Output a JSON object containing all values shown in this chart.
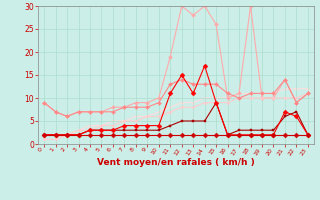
{
  "x": [
    0,
    1,
    2,
    3,
    4,
    5,
    6,
    7,
    8,
    9,
    10,
    11,
    12,
    13,
    14,
    15,
    16,
    17,
    18,
    19,
    20,
    21,
    22,
    23
  ],
  "series": [
    {
      "label": "line_dark_red_flat",
      "color": "#cc0000",
      "linewidth": 0.8,
      "markersize": 2.5,
      "marker": "D",
      "zorder": 6,
      "values": [
        2,
        2,
        2,
        2,
        2,
        2,
        2,
        2,
        2,
        2,
        2,
        2,
        2,
        2,
        2,
        2,
        2,
        2,
        2,
        2,
        2,
        2,
        2,
        2
      ]
    },
    {
      "label": "line_red_spiky",
      "color": "#ff0000",
      "linewidth": 0.8,
      "markersize": 2.5,
      "marker": "D",
      "zorder": 5,
      "values": [
        2,
        2,
        2,
        2,
        3,
        3,
        3,
        4,
        4,
        4,
        4,
        11,
        15,
        11,
        17,
        9,
        2,
        2,
        2,
        2,
        2,
        7,
        6,
        2
      ]
    },
    {
      "label": "line_dark_red2",
      "color": "#aa0000",
      "linewidth": 0.8,
      "markersize": 2.0,
      "marker": "s",
      "zorder": 4,
      "values": [
        2,
        2,
        2,
        2,
        3,
        3,
        3,
        3,
        3,
        3,
        3,
        4,
        5,
        5,
        5,
        9,
        2,
        3,
        3,
        3,
        3,
        6,
        7,
        2
      ]
    },
    {
      "label": "line_medium_pink",
      "color": "#ff8888",
      "linewidth": 0.8,
      "markersize": 2.0,
      "marker": "D",
      "zorder": 3,
      "values": [
        9,
        7,
        6,
        7,
        7,
        7,
        7,
        8,
        8,
        8,
        9,
        13,
        14,
        13,
        13,
        13,
        11,
        10,
        11,
        11,
        11,
        14,
        9,
        11
      ]
    },
    {
      "label": "line_light_pink_spiky",
      "color": "#ffaaaa",
      "linewidth": 0.8,
      "markersize": 2.0,
      "marker": "D",
      "zorder": 2,
      "values": [
        9,
        7,
        6,
        7,
        7,
        7,
        8,
        8,
        9,
        9,
        10,
        19,
        30,
        28,
        30,
        26,
        10,
        11,
        30,
        10,
        10,
        14,
        9,
        11
      ]
    },
    {
      "label": "line_very_light_pink1",
      "color": "#ffcccc",
      "linewidth": 0.8,
      "markersize": 1.5,
      "marker": "D",
      "zorder": 2,
      "values": [
        1,
        1,
        2,
        3,
        3,
        4,
        4,
        5,
        5,
        6,
        6,
        7,
        8,
        8,
        9,
        9,
        9,
        10,
        10,
        10,
        10,
        10,
        10,
        11
      ]
    },
    {
      "label": "line_very_light_pink2",
      "color": "#ffdddd",
      "linewidth": 0.8,
      "markersize": 1.5,
      "marker": "D",
      "zorder": 1,
      "values": [
        1,
        1,
        2,
        3,
        4,
        4,
        5,
        5,
        6,
        6,
        7,
        8,
        9,
        9,
        10,
        10,
        10,
        11,
        11,
        11,
        11,
        12,
        12,
        12
      ]
    }
  ],
  "xlabel": "Vent moyen/en rafales ( km/h )",
  "xlim": [
    -0.5,
    23.5
  ],
  "ylim": [
    0,
    30
  ],
  "yticks": [
    0,
    5,
    10,
    15,
    20,
    25,
    30
  ],
  "xticks": [
    0,
    1,
    2,
    3,
    4,
    5,
    6,
    7,
    8,
    9,
    10,
    11,
    12,
    13,
    14,
    15,
    16,
    17,
    18,
    19,
    20,
    21,
    22,
    23
  ],
  "bg_color": "#cceee8",
  "grid_color": "#aaddcc",
  "tick_color": "#cc0000",
  "label_color": "#cc0000"
}
